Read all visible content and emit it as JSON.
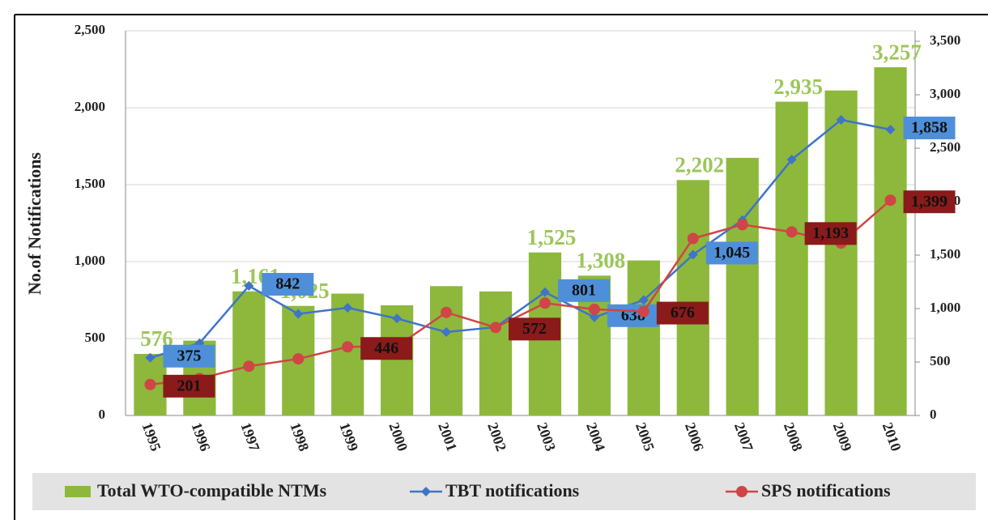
{
  "chart_data": {
    "type": "combo",
    "y_label": "No.of Notifications",
    "categories": [
      "1995",
      "1996",
      "1997",
      "1998",
      "1999",
      "2000",
      "2001",
      "2002",
      "2003",
      "2004",
      "2005",
      "2006",
      "2007",
      "2008",
      "2009",
      "2010"
    ],
    "ylim": [
      0,
      2500
    ],
    "yticks": [
      0,
      500,
      {
        "value": 1000,
        "label": "1,000"
      },
      {
        "value": 1500,
        "label": "1,500"
      },
      {
        "value": 2000,
        "label": "2,000"
      },
      {
        "value": 2500,
        "label": "2,500"
      }
    ],
    "y2lim": [
      0,
      3500
    ],
    "y2ticks": [
      0,
      500,
      {
        "value": 1000,
        "label": "1,000"
      },
      {
        "value": 1500,
        "label": "1,500"
      },
      {
        "value": 2000,
        "label": "2,000"
      },
      {
        "value": 2500,
        "label": "2,500"
      },
      {
        "value": 3000,
        "label": "3,000"
      },
      {
        "value": 3500,
        "label": "3,500"
      }
    ],
    "grid": true,
    "legend": "bottom",
    "series": [
      {
        "name": "Total WTO-compatible NTMs",
        "type": "bar",
        "axis": "y2",
        "color": "#8db83c",
        "values": [
          576,
          700,
          1161,
          1025,
          1140,
          1030,
          1210,
          1160,
          1525,
          1308,
          1450,
          2202,
          2410,
          2935,
          3040,
          3257
        ],
        "value_labels": [
          "576",
          null,
          "1,161",
          "1,025",
          null,
          null,
          null,
          null,
          "1,525",
          "1,308",
          null,
          "2,202",
          null,
          "2,935",
          null,
          "3,257"
        ]
      },
      {
        "name": "TBT notifications",
        "type": "line",
        "marker": "diamond",
        "color": "#3f74c8",
        "label_color": "#4f8fd9",
        "values": [
          375,
          470,
          842,
          660,
          700,
          630,
          542,
          574,
          801,
          638,
          750,
          1045,
          1270,
          1663,
          1921,
          1858
        ],
        "value_labels": [
          "375",
          null,
          "842",
          null,
          null,
          null,
          null,
          null,
          "801",
          "638",
          null,
          "1,045",
          null,
          null,
          null,
          "1,858"
        ]
      },
      {
        "name": "SPS notifications",
        "type": "line",
        "marker": "circle",
        "color": "#d04545",
        "label_color": "#8b1a1a",
        "values": [
          201,
          240,
          320,
          368,
          446,
          450,
          670,
          572,
          730,
          690,
          676,
          1150,
          1240,
          1193,
          1120,
          1399
        ],
        "value_labels": [
          "201",
          null,
          null,
          null,
          "446",
          null,
          null,
          "572",
          null,
          null,
          "676",
          null,
          null,
          "1,193",
          null,
          "1,399"
        ]
      }
    ]
  }
}
